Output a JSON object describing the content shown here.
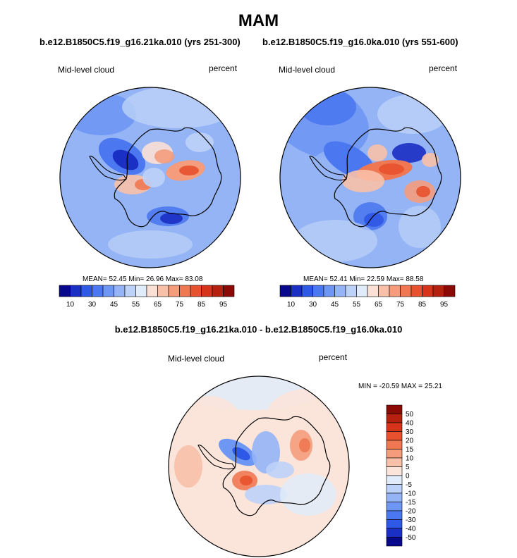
{
  "season": "MAM",
  "panels": [
    {
      "title": "b.e12.B1850C5.f19_g16.21ka.010 (yrs 251-300)",
      "variable": "Mid-level cloud",
      "units": "percent",
      "stats": "MEAN=  52.45  Min=  26.96  Max=  83.08",
      "colorbar_ticks": [
        "10",
        "30",
        "45",
        "55",
        "65",
        "75",
        "85",
        "95"
      ]
    },
    {
      "title": "b.e12.B1850C5.f19_g16.0ka.010 (yrs 551-600)",
      "variable": "Mid-level cloud",
      "units": "percent",
      "stats": "MEAN=  52.41  Min=  22.59  Max=  88.58",
      "colorbar_ticks": [
        "10",
        "30",
        "45",
        "55",
        "65",
        "75",
        "85",
        "95"
      ]
    }
  ],
  "difference": {
    "title": "b.e12.B1850C5.f19_g16.21ka.010 - b.e12.B1850C5.f19_g16.0ka.010",
    "variable": "Mid-level cloud",
    "units": "percent",
    "stats": "MIN = -20.59 MAX =  25.21",
    "colorbar_ticks": [
      "50",
      "40",
      "30",
      "20",
      "15",
      "10",
      "5",
      "0",
      "-5",
      "-10",
      "-15",
      "-20",
      "-30",
      "-40",
      "-50"
    ]
  },
  "colors": {
    "abs_scale": [
      "#08088c",
      "#1a2fc4",
      "#2e58e6",
      "#4b78f0",
      "#6e96f3",
      "#94b4f6",
      "#bcd2f8",
      "#e0ecfa",
      "#fbe0d6",
      "#f8c0a8",
      "#f49c7c",
      "#ef7852",
      "#e8512d",
      "#d5341a",
      "#b5200f",
      "#8c0a05"
    ],
    "diff_scale": [
      "#8c0a05",
      "#b5200f",
      "#d5341a",
      "#e8512d",
      "#ef7852",
      "#f49c7c",
      "#f8c0a8",
      "#fbe4da",
      "#e0ecfa",
      "#bcd2f8",
      "#94b4f6",
      "#6e96f3",
      "#4b78f0",
      "#2e58e6",
      "#1a2fc4",
      "#08088c"
    ],
    "coast": "#000000"
  }
}
